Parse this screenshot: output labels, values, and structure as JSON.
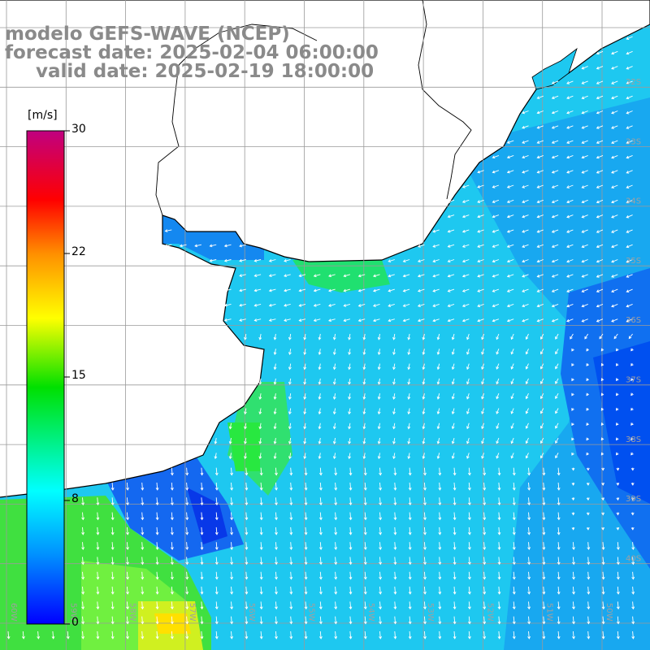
{
  "header": {
    "title": "modelo GEFS-WAVE (NCEP)",
    "forecast_line": "forecast date: 2025-02-04 06:00:00",
    "valid_line": "valid date: 2025-02-19 18:00:00"
  },
  "colorbar": {
    "unit": "[m/s]",
    "ticks": [
      "30",
      "22",
      "15",
      "8",
      "0"
    ],
    "min": 0,
    "max": 30,
    "gradient_colors": [
      "#0000ff",
      "#00b4ff",
      "#00ffff",
      "#00ff00",
      "#ffff00",
      "#ff8000",
      "#ff0000",
      "#ff0080",
      "#c00080"
    ]
  },
  "map": {
    "lat_labels": [
      "32S",
      "33S",
      "34S",
      "35S",
      "36S",
      "37S",
      "38S",
      "39S",
      "40S"
    ],
    "lon_labels": [
      "60W",
      "59W",
      "58W",
      "57W",
      "56W",
      "55W",
      "54W",
      "53W",
      "52W",
      "51W",
      "50W"
    ],
    "land_color": "#ffffff",
    "coast_color": "#000000",
    "grid_color": "#9a9a9a",
    "arrow_color": "#ffffff"
  }
}
